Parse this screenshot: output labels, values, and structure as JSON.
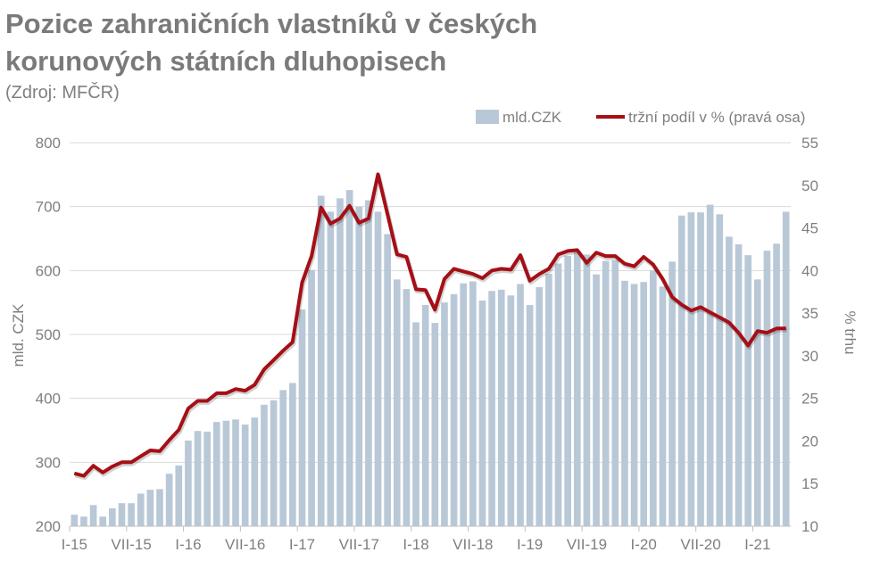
{
  "chart_data": {
    "type": "bar+line",
    "title": "Pozice zahraničních vlastníků v českých korunových státních dluhopisech",
    "subtitle": "(Zdroj: MFČR)",
    "ylabel": "mld. CZK",
    "y2label": "% trhu",
    "ylim": [
      200,
      800
    ],
    "y2lim": [
      10,
      55
    ],
    "yticks": [
      200,
      300,
      400,
      500,
      600,
      700,
      800
    ],
    "y2ticks": [
      10,
      15,
      20,
      25,
      30,
      35,
      40,
      45,
      50,
      55
    ],
    "xtick_labels": [
      "I-15",
      "VII-15",
      "I-16",
      "VII-16",
      "I-17",
      "VII-17",
      "I-18",
      "VII-18",
      "I-19",
      "VII-19",
      "I-20",
      "VII-20",
      "I-21"
    ],
    "grid": true,
    "legend_position": "top-right",
    "colors": {
      "bars": "#b9c8d7",
      "line": "#a50f15"
    },
    "series": [
      {
        "name": "mld.CZK",
        "type": "bar",
        "axis": "left",
        "values": [
          218,
          215,
          233,
          215,
          228,
          236,
          236,
          251,
          257,
          258,
          282,
          295,
          334,
          349,
          348,
          363,
          365,
          367,
          359,
          370,
          390,
          397,
          413,
          424,
          539,
          601,
          717,
          692,
          713,
          726,
          700,
          710,
          692,
          657,
          586,
          571,
          519,
          546,
          518,
          550,
          563,
          580,
          583,
          553,
          568,
          570,
          561,
          579,
          546,
          574,
          595,
          611,
          623,
          629,
          625,
          594,
          615,
          616,
          584,
          579,
          582,
          600,
          575,
          614,
          686,
          691,
          691,
          703,
          688,
          653,
          641,
          624,
          586,
          631,
          642,
          692
        ]
      },
      {
        "name": "tržní podíl v % (pravá osa)",
        "type": "line",
        "axis": "right",
        "values": [
          16.2,
          15.9,
          17.1,
          16.3,
          17.0,
          17.5,
          17.5,
          18.2,
          18.9,
          18.8,
          20.1,
          21.3,
          23.8,
          24.7,
          24.7,
          25.6,
          25.6,
          26.1,
          25.9,
          26.6,
          28.4,
          29.5,
          30.6,
          31.6,
          38.6,
          41.7,
          47.4,
          45.5,
          46.1,
          47.6,
          45.6,
          46.1,
          51.3,
          46.6,
          41.9,
          41.6,
          37.8,
          37.7,
          35.4,
          39.0,
          40.2,
          39.9,
          39.6,
          39.1,
          40.0,
          40.2,
          40.1,
          41.8,
          38.8,
          39.6,
          40.2,
          41.9,
          42.3,
          42.4,
          40.9,
          42.1,
          41.7,
          41.7,
          40.8,
          40.5,
          41.6,
          40.7,
          39.0,
          36.9,
          36.0,
          35.3,
          35.7,
          35.1,
          34.5,
          33.9,
          32.7,
          31.2,
          32.9,
          32.7,
          33.2,
          33.2
        ]
      }
    ]
  }
}
